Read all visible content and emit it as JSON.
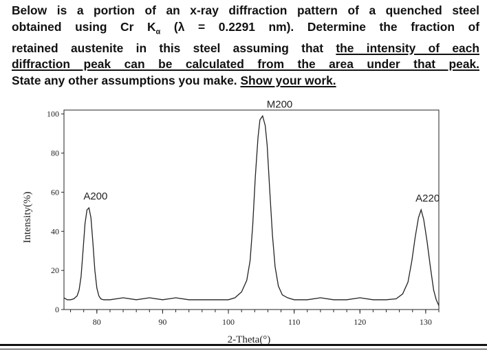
{
  "question": {
    "line1": "Below is a portion of an x-ray diffraction pattern of a quenched steel",
    "line2_a": "obtained using Cr K",
    "line2_sub": "α",
    "line2_b": " (λ = 0.2291 nm). Determine the fraction of",
    "line3_a": "retained austenite in this steel assuming that ",
    "line3_u": "the intensity of each",
    "line4_u": "diffraction peak can be calculated from the area under that peak.",
    "line5_a": "State any other assumptions you make. ",
    "line5_u": "Show your work."
  },
  "chart_data": {
    "type": "line",
    "xlabel": "2-Theta(°)",
    "ylabel": "Intensity(%)",
    "xlim": [
      75,
      132
    ],
    "ylim": [
      0,
      102
    ],
    "xticks": [
      80,
      90,
      100,
      110,
      120,
      130
    ],
    "yticks": [
      0,
      20,
      40,
      60,
      80,
      100
    ],
    "x_minor_step": 2,
    "baseline": 5,
    "peaks": [
      {
        "label": "A200",
        "center": 78.8,
        "height": 52,
        "width": 0.55
      },
      {
        "label": "M200",
        "center": 105.2,
        "height": 99,
        "width": 0.95
      },
      {
        "label": "A220",
        "center": 129.3,
        "height": 51,
        "width": 0.95
      }
    ],
    "series": [
      {
        "x": [
          75,
          75.5,
          76,
          76.5,
          77,
          77.3,
          77.6,
          77.9,
          78.2,
          78.5,
          78.8,
          79.1,
          79.4,
          79.7,
          80.0,
          80.3,
          80.6,
          81,
          82,
          84,
          86,
          88,
          90,
          92,
          94,
          96,
          98,
          100,
          101,
          102,
          102.8,
          103.3,
          103.7,
          104.1,
          104.5,
          104.8,
          105.2,
          105.6,
          105.9,
          106.3,
          106.7,
          107.1,
          107.6,
          108.2,
          109,
          110,
          112,
          114,
          116,
          118,
          120,
          122,
          124,
          125.5,
          126.5,
          127.3,
          127.9,
          128.4,
          128.9,
          129.3,
          129.7,
          130.2,
          130.7,
          131.2,
          131.6,
          132
        ],
        "values": [
          6,
          5,
          5,
          5.5,
          7,
          10,
          17,
          30,
          44,
          51,
          52,
          47,
          34,
          20,
          11,
          7,
          5.5,
          5,
          5,
          6,
          5,
          6,
          5,
          6,
          5,
          5,
          5,
          5,
          6,
          9,
          15,
          25,
          43,
          68,
          88,
          97,
          99,
          94,
          84,
          60,
          38,
          22,
          12,
          7.5,
          6,
          5,
          5,
          6,
          5,
          5,
          6,
          5,
          5,
          5.5,
          8,
          14,
          25,
          37,
          47,
          51,
          46,
          35,
          22,
          10,
          5,
          2
        ]
      }
    ]
  }
}
